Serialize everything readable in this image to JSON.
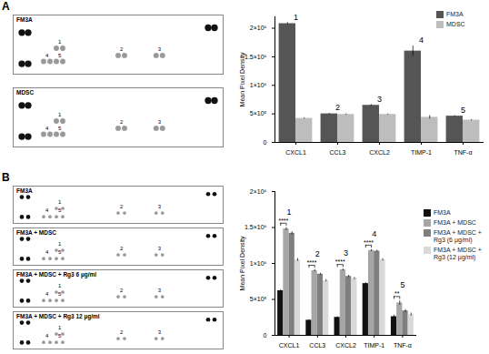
{
  "figure": {
    "panels": [
      {
        "label": "A",
        "blots": [
          {
            "title": "FM3A",
            "spots": [
              "1",
              "2",
              "3",
              "4",
              "5"
            ]
          },
          {
            "title": "MDSC",
            "spots": [
              "1",
              "2",
              "3",
              "4",
              "5"
            ]
          }
        ]
      },
      {
        "label": "B",
        "blots": [
          {
            "title": "FM3A",
            "spots": [
              "1",
              "2",
              "3",
              "4",
              "5"
            ]
          },
          {
            "title": "FM3A + MDSC",
            "spots": [
              "1",
              "2",
              "3",
              "4",
              "5"
            ]
          },
          {
            "title": "FM3A + MDSC + Rg3 6 µg/ml",
            "spots": [
              "1",
              "2",
              "3",
              "4",
              "5"
            ]
          },
          {
            "title": "FM3A + MDSC + Rg3 12 µg/ml",
            "spots": [
              "1",
              "2",
              "3",
              "4",
              "5"
            ]
          }
        ]
      }
    ]
  },
  "chart_data": [
    {
      "type": "bar",
      "y_label": "Mean Pixel Density",
      "categories": [
        "CXCL1",
        "CCL3",
        "CXCL2",
        "TIMP-1",
        "TNF-α"
      ],
      "series": [
        {
          "name": "FM3A",
          "color": "#555555",
          "values": [
            2080000,
            500000,
            650000,
            1600000,
            460000
          ],
          "errors": [
            20000,
            10000,
            15000,
            90000,
            10000
          ]
        },
        {
          "name": "MDSC",
          "color": "#bdbdbd",
          "values": [
            420000,
            490000,
            490000,
            440000,
            390000
          ],
          "errors": [
            10000,
            10000,
            10000,
            30000,
            10000
          ]
        }
      ],
      "ylim": [
        0,
        2200000
      ],
      "yticks": [
        0,
        {
          "value": 500000,
          "label": "5×10⁵"
        },
        {
          "value": 1000000,
          "label": "1×10⁶"
        },
        {
          "value": 1500000,
          "label": "1.5×10⁶"
        },
        {
          "value": 2000000,
          "label": "2×10⁶"
        }
      ],
      "annotations": [
        {
          "category": "CXCL1",
          "label": "1"
        },
        {
          "category": "CCL3",
          "label": "2"
        },
        {
          "category": "CXCL2",
          "label": "3"
        },
        {
          "category": "TIMP-1",
          "label": "4"
        },
        {
          "category": "TNF-α",
          "label": "5"
        }
      ],
      "legend": "top-right"
    },
    {
      "type": "bar",
      "y_label": "Mean Pixel Density",
      "categories": [
        "CXCL1",
        "CCL3",
        "CXCL2",
        "TIMP-1",
        "TNF-α"
      ],
      "series": [
        {
          "name": "FM3A",
          "color": "#111111",
          "values": [
            620000,
            210000,
            250000,
            720000,
            260000
          ],
          "errors": [
            15000,
            10000,
            10000,
            15000,
            20000
          ]
        },
        {
          "name": "FM3A + MDSC",
          "color": "#a6a6a6",
          "values": [
            1480000,
            900000,
            910000,
            1180000,
            450000
          ],
          "errors": [
            20000,
            15000,
            15000,
            15000,
            30000
          ]
        },
        {
          "name": "FM3A + MDSC + Rg3 (6 µg/ml)",
          "color": "#7f7f7f",
          "values": [
            1420000,
            850000,
            820000,
            1170000,
            340000
          ],
          "errors": [
            20000,
            15000,
            15000,
            15000,
            20000
          ]
        },
        {
          "name": "FM3A + MDSC + Rg3 (12 µg/ml)",
          "color": "#d9d9d9",
          "values": [
            1050000,
            760000,
            790000,
            1050000,
            290000
          ],
          "errors": [
            20000,
            15000,
            15000,
            15000,
            20000
          ]
        }
      ],
      "ylim": [
        0,
        2000000
      ],
      "yticks": [
        0,
        {
          "value": 500000,
          "label": "5×10⁵"
        },
        {
          "value": 1000000,
          "label": "1×10⁶"
        },
        {
          "value": 1500000,
          "label": "1.5×10⁶"
        },
        {
          "value": 2000000,
          "label": "2×10⁶"
        }
      ],
      "annotations": [
        {
          "category": "CXCL1",
          "label": "1"
        },
        {
          "category": "CCL3",
          "label": "2"
        },
        {
          "category": "CXCL2",
          "label": "3"
        },
        {
          "category": "TIMP-1",
          "label": "4"
        },
        {
          "category": "TNF-α",
          "label": "5"
        }
      ],
      "significance": [
        {
          "category": "CXCL1",
          "between": [
            "FM3A",
            "FM3A + MDSC"
          ],
          "label": "****"
        },
        {
          "category": "CCL3",
          "between": [
            "FM3A",
            "FM3A + MDSC"
          ],
          "label": "****"
        },
        {
          "category": "CXCL2",
          "between": [
            "FM3A",
            "FM3A + MDSC"
          ],
          "label": "****"
        },
        {
          "category": "TIMP-1",
          "between": [
            "FM3A",
            "FM3A + MDSC"
          ],
          "label": "****"
        },
        {
          "category": "TNF-α",
          "between": [
            "FM3A",
            "FM3A + MDSC"
          ],
          "label": "**"
        }
      ],
      "legend": "right"
    }
  ]
}
